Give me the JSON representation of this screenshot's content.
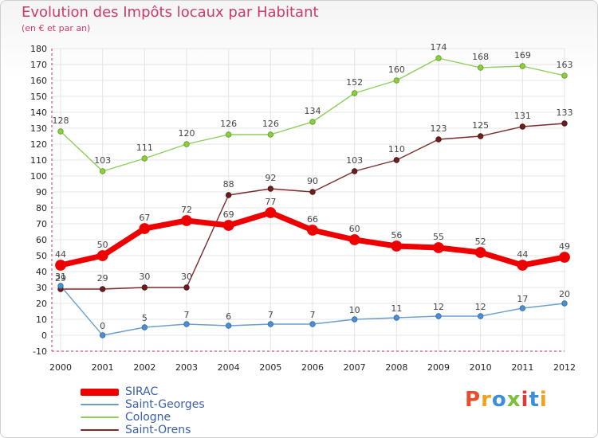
{
  "header": {
    "title": "Evolution des Impôts locaux par Habitant",
    "subtitle": "(en € et par an)"
  },
  "logo": {
    "letters": [
      "P",
      "r",
      "o",
      "x",
      "i",
      "t",
      "i"
    ],
    "colors": [
      "#e94c2a",
      "#f2a11b",
      "#3c8fd6",
      "#7bbf3a",
      "#d93a3a",
      "#3c8fd6",
      "#f2a11b"
    ]
  },
  "chart_data": {
    "type": "line",
    "title": "Evolution des Impôts locaux par Habitant",
    "subtitle": "(en € et par an)",
    "x": [
      "2000",
      "2001",
      "2002",
      "2003",
      "2004",
      "2005",
      "2006",
      "2007",
      "2008",
      "2009",
      "2010",
      "2011",
      "2012"
    ],
    "ylim": [
      -10,
      180
    ],
    "yticks": [
      "-10",
      "0",
      "10",
      "20",
      "30",
      "40",
      "50",
      "60",
      "70",
      "80",
      "90",
      "100",
      "110",
      "120",
      "130",
      "140",
      "150",
      "160",
      "170",
      "180"
    ],
    "grid": true,
    "legend_position": "bottom-left",
    "series": [
      {
        "name": "SIRAC",
        "color": "#ee0000",
        "values": [
          44,
          50,
          67,
          72,
          69,
          77,
          66,
          60,
          56,
          55,
          52,
          44,
          49
        ],
        "labels": [
          "44",
          "50",
          "67",
          "72",
          "69",
          "77",
          "66",
          "60",
          "56",
          "55",
          "52",
          "44",
          "49"
        ]
      },
      {
        "name": "Saint-Georges",
        "color": "#6a9fcf",
        "values": [
          31,
          0,
          5,
          7,
          6,
          7,
          7,
          10,
          11,
          12,
          12,
          17,
          20
        ],
        "labels": [
          "31",
          "0",
          "5",
          "7",
          "6",
          "7",
          "7",
          "10",
          "11",
          "12",
          "12",
          "17",
          "20"
        ]
      },
      {
        "name": "Cologne",
        "color": "#8ccf5a",
        "values": [
          128,
          103,
          111,
          120,
          126,
          126,
          134,
          152,
          160,
          174,
          168,
          169,
          163
        ],
        "labels": [
          "128",
          "103",
          "111",
          "120",
          "126",
          "126",
          "134",
          "152",
          "160",
          "174",
          "168",
          "169",
          "163"
        ]
      },
      {
        "name": "Saint-Orens",
        "color": "#7a2a2a",
        "values": [
          29,
          29,
          30,
          30,
          88,
          92,
          90,
          103,
          110,
          123,
          125,
          131,
          133
        ],
        "labels": [
          "29",
          "29",
          "30",
          "30",
          "88",
          "92",
          "90",
          "103",
          "110",
          "123",
          "125",
          "131",
          "133"
        ]
      }
    ]
  }
}
